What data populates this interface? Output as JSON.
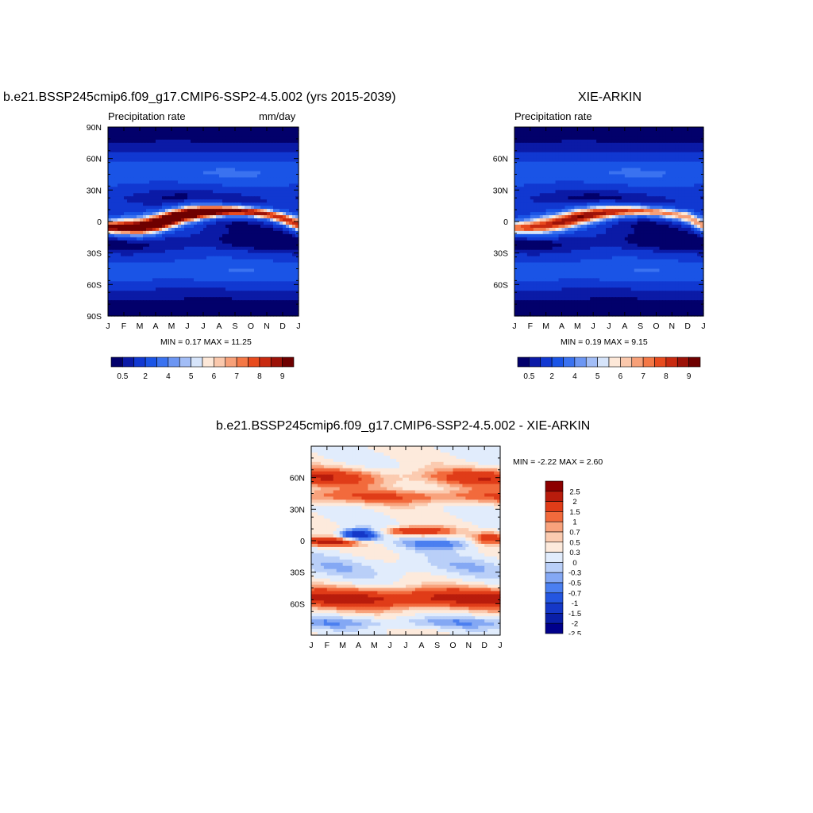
{
  "palette": {
    "bounds": [
      "#02006b",
      "#0b1aa6",
      "#1138d1",
      "#1a54e6",
      "#3a72f0",
      "#6c96f3",
      "#a2bdf6",
      "#d6e4fa",
      "#fde8d8",
      "#fac8ac",
      "#f7a078",
      "#f47846",
      "#e84b1e",
      "#c82a10",
      "#9c1208",
      "#6e0000"
    ]
  },
  "panels": {
    "model": {
      "title": "b.e21.BSSP245cmip6.f09_g17.CMIP6-SSP2-4.5.002 (yrs 2015-2039)",
      "left_label": "Precipitation rate",
      "right_label": "mm/day",
      "minmax": "MIN =   0.17 MAX =  11.25"
    },
    "obs": {
      "title": "XIE-ARKIN",
      "left_label": "Precipitation rate",
      "minmax": "MIN =   0.19 MAX =   9.15"
    },
    "diff": {
      "title": "b.e21.BSSP245cmip6.f09_g17.CMIP6-SSP2-4.5.002 - XIE-ARKIN",
      "minmax": "MIN =  -2.22 MAX =   2.60"
    }
  },
  "chart_data": [
    {
      "type": "heatmap",
      "name": "model",
      "x_ticks": [
        "J",
        "F",
        "M",
        "A",
        "M",
        "J",
        "J",
        "A",
        "S",
        "O",
        "N",
        "D",
        "J"
      ],
      "y_ticks": [
        "90N",
        "60N",
        "30N",
        "0",
        "30S",
        "60S",
        "90S"
      ],
      "ylim": [
        "90S",
        "90N"
      ],
      "units": "mm/day",
      "min": 0.17,
      "max": 11.25,
      "colorbar_labels": [
        "0.5",
        "2",
        "4",
        "5",
        "6",
        "7",
        "8",
        "9"
      ],
      "itcz": {
        "lat_by_month": [
          -5,
          -5,
          -5,
          -2,
          3,
          7,
          9,
          10,
          10,
          9,
          7,
          3,
          -3
        ],
        "peak_value": 11.25
      }
    },
    {
      "type": "heatmap",
      "name": "obs",
      "x_ticks": [
        "J",
        "F",
        "M",
        "A",
        "M",
        "J",
        "J",
        "A",
        "S",
        "O",
        "N",
        "D",
        "J"
      ],
      "y_ticks": [
        "60N",
        "30N",
        "0",
        "30S",
        "60S"
      ],
      "units": "mm/day",
      "min": 0.19,
      "max": 9.15,
      "colorbar_labels": [
        "0.5",
        "2",
        "4",
        "5",
        "6",
        "7",
        "8",
        "9"
      ],
      "itcz": {
        "lat_by_month": [
          -6,
          -5,
          -3,
          0,
          4,
          7,
          9,
          10,
          10,
          9,
          7,
          4,
          -4
        ],
        "peak_value": 9.15
      }
    },
    {
      "type": "heatmap",
      "name": "difference",
      "x_ticks": [
        "J",
        "F",
        "M",
        "A",
        "M",
        "J",
        "J",
        "A",
        "S",
        "O",
        "N",
        "D",
        "J"
      ],
      "y_ticks": [
        "60N",
        "30N",
        "0",
        "30S",
        "60S"
      ],
      "min": -2.22,
      "max": 2.6,
      "colorbar_labels": [
        "2.5",
        "2",
        "1.5",
        "1",
        "0.7",
        "0.5",
        "0.3",
        "0",
        "-0.3",
        "-0.5",
        "-0.7",
        "-1",
        "-1.5",
        "-2",
        "-2.5"
      ]
    }
  ]
}
